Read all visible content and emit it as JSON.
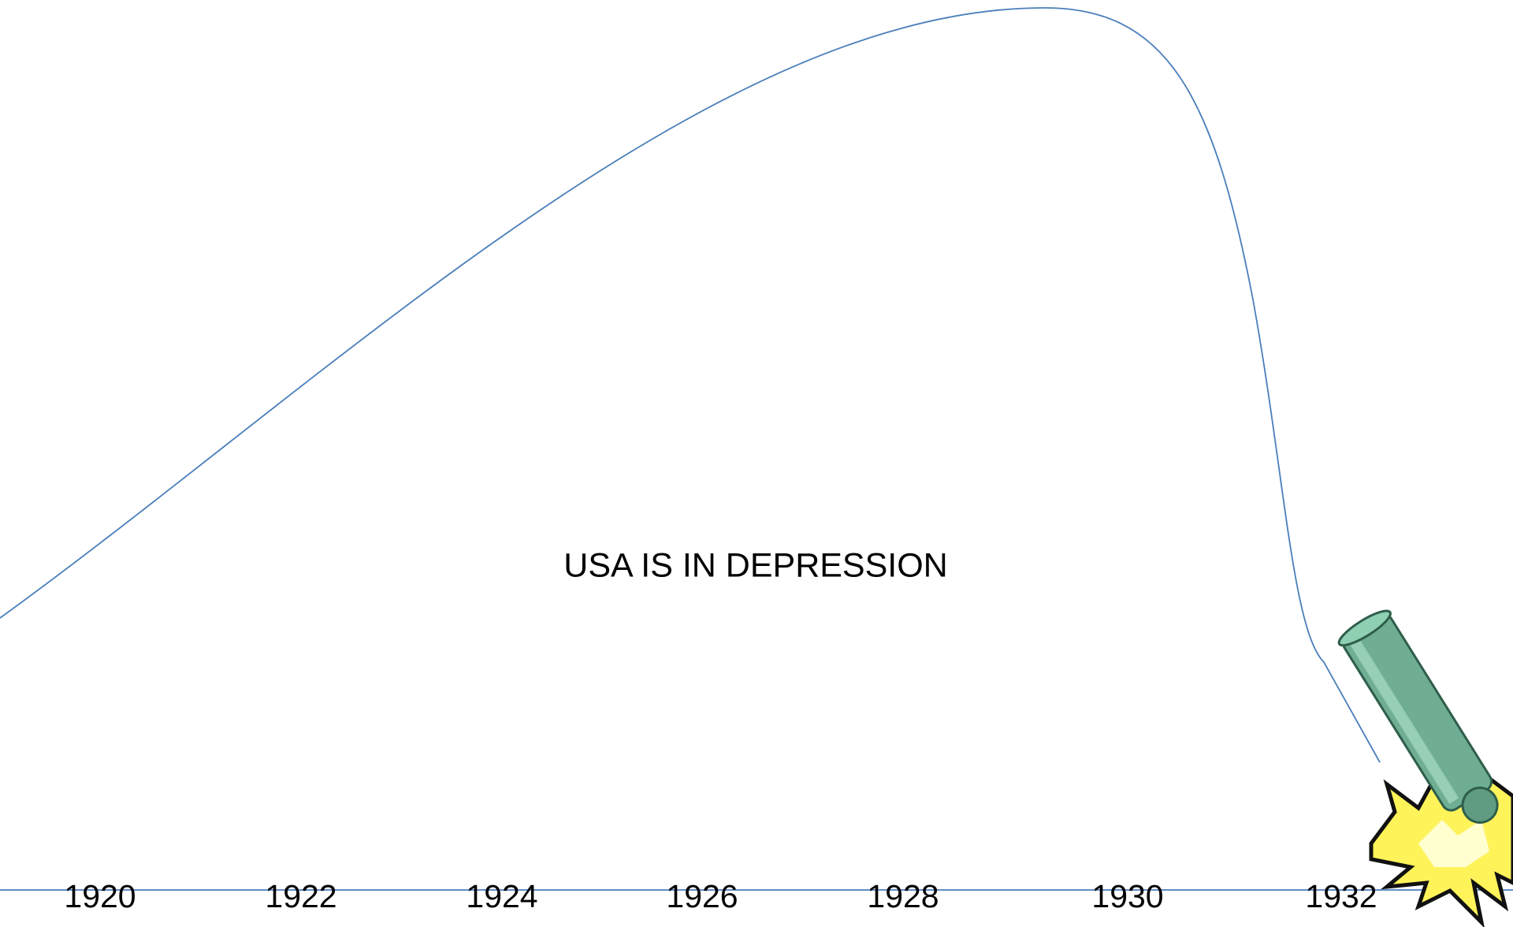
{
  "caption": "USA IS IN DEPRESSION",
  "timeline": {
    "labels": [
      "1920",
      "1922",
      "1924",
      "1926",
      "1928",
      "1930",
      "1932"
    ]
  }
}
